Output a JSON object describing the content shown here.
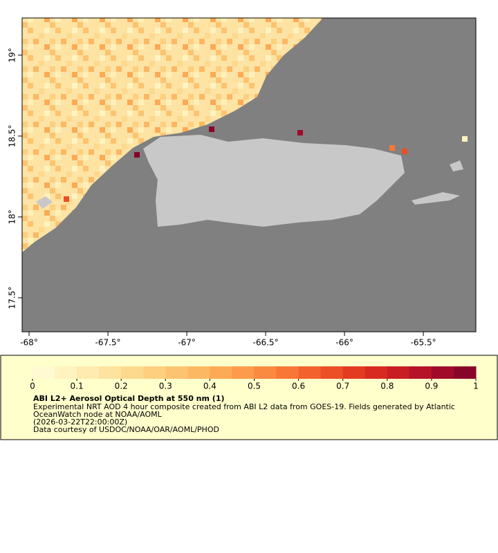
{
  "chart_data": {
    "type": "map",
    "xlim": [
      -68.044,
      -65.167
    ],
    "ylim": [
      17.29,
      19.23
    ],
    "xticks": [
      {
        "value": -68,
        "label": "-68°"
      },
      {
        "value": -67.5,
        "label": "-67.5°"
      },
      {
        "value": -67,
        "label": "-67°"
      },
      {
        "value": -66.5,
        "label": "-66.5°"
      },
      {
        "value": -66,
        "label": "-66°"
      },
      {
        "value": -65.5,
        "label": "-65.5°"
      }
    ],
    "yticks": [
      {
        "value": 17.5,
        "label": "17.5°"
      },
      {
        "value": 18,
        "label": "18°"
      },
      {
        "value": 18.5,
        "label": "18.5°"
      },
      {
        "value": 19,
        "label": "19°"
      }
    ],
    "colorbar": {
      "clim": [
        0,
        1
      ],
      "ticks": [
        0,
        0.1,
        0.2,
        0.3,
        0.4,
        0.5,
        0.6,
        0.7,
        0.8,
        0.9,
        1
      ],
      "colors": [
        "#fffad2",
        "#fff3c0",
        "#ffebb0",
        "#fee29f",
        "#fdd98d",
        "#fdcf7e",
        "#fcc470",
        "#fcb862",
        "#fcaa56",
        "#fb9b4b",
        "#fa8a40",
        "#f87736",
        "#f3622d",
        "#ec4e26",
        "#e33b22",
        "#d82a20",
        "#c91d24",
        "#b61329",
        "#a00b2b",
        "#88052a"
      ]
    },
    "title": "ABI L2+ Aerosol Optical Depth at 550 nm (1)",
    "description": [
      "Experimental NRT AOD 4 hour composite created from ABI L2 data from GOES-19. Fields generated by Atlantic",
      "OceanWatch node at NOAA/AOML",
      "(2026-03-22T22:00:00Z)",
      "Data courtesy of USDOC/NOAA/OAR/AOML/PHOD"
    ]
  }
}
